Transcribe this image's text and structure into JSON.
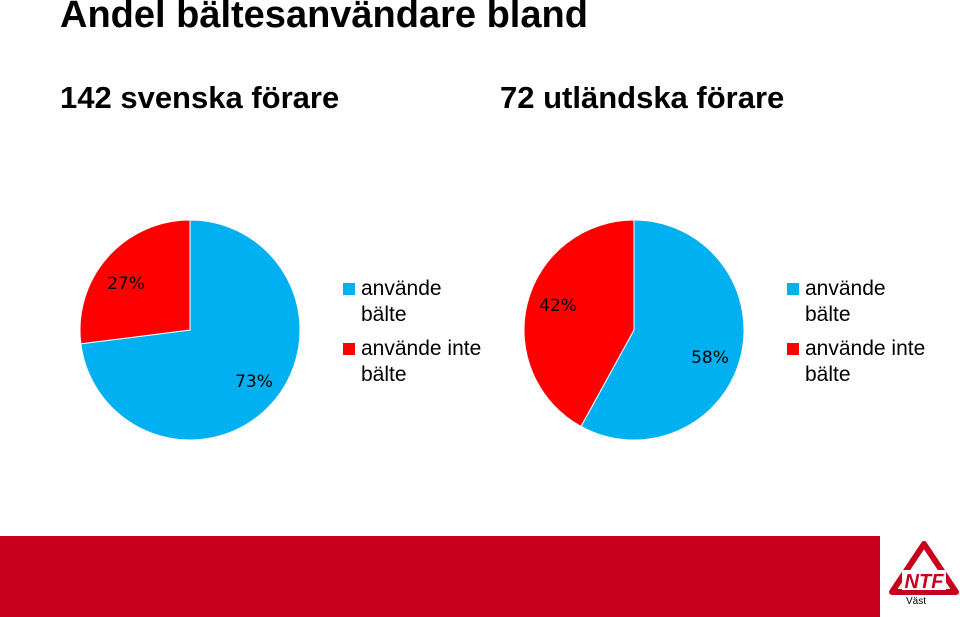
{
  "title": "Andel bältesanvändare bland",
  "chart_data": [
    {
      "type": "pie",
      "title": "142 svenska förare",
      "categories": [
        "använde bälte",
        "använde inte bälte"
      ],
      "values": [
        73,
        27
      ],
      "labels": [
        "73%",
        "27%"
      ],
      "colors": [
        "#00b0f0",
        "#ff0000"
      ],
      "legend": [
        "använde bälte",
        "använde inte bälte"
      ],
      "legend_position": "right"
    },
    {
      "type": "pie",
      "title": "72 utländska förare",
      "categories": [
        "använde bälte",
        "använde inte bälte"
      ],
      "values": [
        58,
        42
      ],
      "labels": [
        "58%",
        "42%"
      ],
      "colors": [
        "#00b0f0",
        "#ff0000"
      ],
      "legend": [
        "använde bälte",
        "använde inte bälte"
      ],
      "legend_position": "right"
    }
  ],
  "footer": {
    "bar_color": "#c8001e",
    "logo_icon": "ntf-logo-icon",
    "logo_text": "NTF",
    "logo_subtext": "Väst"
  }
}
